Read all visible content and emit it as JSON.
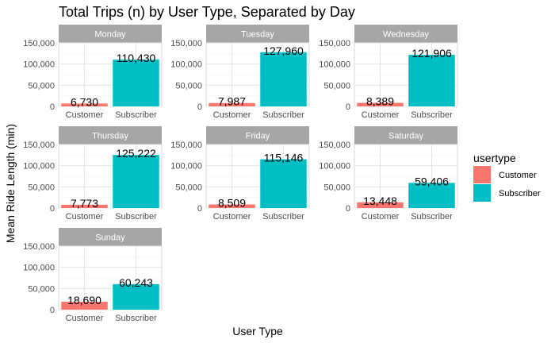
{
  "chart_data": {
    "type": "bar",
    "title": "Total Trips (n) by User Type, Separated by Day",
    "xlabel": "User Type",
    "ylabel": "Mean Ride Length (min)",
    "categories": [
      "Customer",
      "Subscriber"
    ],
    "ylim": [
      0,
      150000
    ],
    "yticks": [
      0,
      50000,
      100000,
      150000
    ],
    "ytick_labels": [
      "0",
      "50,000",
      "100,000",
      "150,000"
    ],
    "legend": {
      "title": "usertype",
      "placement": "right",
      "items": [
        {
          "name": "Customer",
          "color": "#F8766D"
        },
        {
          "name": "Subscriber",
          "color": "#00BFC4"
        }
      ]
    },
    "grid": true,
    "facets": [
      {
        "label": "Monday",
        "values": [
          6730,
          110430
        ],
        "value_labels": [
          "6,730",
          "110,430"
        ]
      },
      {
        "label": "Tuesday",
        "values": [
          7987,
          127960
        ],
        "value_labels": [
          "7,987",
          "127,960"
        ]
      },
      {
        "label": "Wednesday",
        "values": [
          8389,
          121906
        ],
        "value_labels": [
          "8,389",
          "121,906"
        ]
      },
      {
        "label": "Thursday",
        "values": [
          7773,
          125222
        ],
        "value_labels": [
          "7,773",
          "125,222"
        ]
      },
      {
        "label": "Friday",
        "values": [
          8509,
          115146
        ],
        "value_labels": [
          "8,509",
          "115,146"
        ]
      },
      {
        "label": "Saturday",
        "values": [
          13448,
          59406
        ],
        "value_labels": [
          "13,448",
          "59,406"
        ]
      },
      {
        "label": "Sunday",
        "values": [
          18690,
          60243
        ],
        "value_labels": [
          "18,690",
          "60,243"
        ]
      }
    ]
  }
}
